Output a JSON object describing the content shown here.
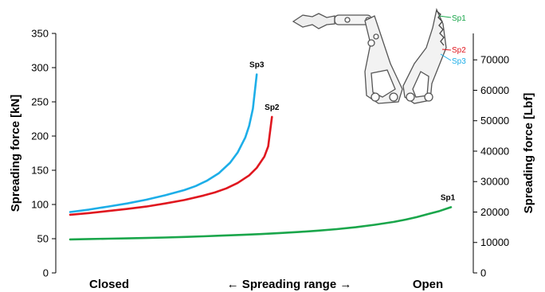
{
  "chart_data": {
    "type": "line",
    "xlabel": "← Spreading range →",
    "x_labels": [
      "Closed",
      "Open"
    ],
    "ylabel": "Spreading force [kN]",
    "ylim": [
      0,
      350
    ],
    "yticks": [
      0,
      50,
      100,
      150,
      200,
      250,
      300,
      350
    ],
    "y2label": "Spreading force [Lbf]",
    "y2lim": [
      0,
      78683
    ],
    "y2ticks": [
      0,
      10000,
      20000,
      30000,
      40000,
      50000,
      60000,
      70000
    ],
    "grid": false,
    "series": [
      {
        "name": "Sp1",
        "color": "#1aa64b",
        "x": [
          0,
          0.05,
          0.1,
          0.15,
          0.2,
          0.25,
          0.3,
          0.35,
          0.4,
          0.45,
          0.5,
          0.55,
          0.6,
          0.65,
          0.7,
          0.75,
          0.8,
          0.85,
          0.88,
          0.91,
          0.94,
          0.97,
          1.0
        ],
        "values": [
          49,
          49.5,
          50,
          50.5,
          51,
          51.8,
          52.6,
          53.5,
          54.5,
          55.6,
          56.8,
          58.2,
          59.8,
          61.7,
          64.0,
          66.8,
          70.3,
          74.5,
          77.8,
          81.5,
          86,
          90.5,
          96
        ]
      },
      {
        "name": "Sp2",
        "color": "#e0171f",
        "x": [
          0,
          0.05,
          0.1,
          0.15,
          0.2,
          0.25,
          0.3,
          0.35,
          0.38,
          0.41,
          0.44,
          0.47,
          0.49,
          0.51,
          0.52,
          0.53
        ],
        "values": [
          85,
          87.5,
          90.5,
          93.5,
          97,
          101.5,
          106.5,
          113,
          117.5,
          123.5,
          131.5,
          142.5,
          153.5,
          170,
          185,
          228
        ]
      },
      {
        "name": "Sp3",
        "color": "#1daee8",
        "x": [
          0,
          0.05,
          0.1,
          0.15,
          0.2,
          0.25,
          0.3,
          0.33,
          0.36,
          0.39,
          0.42,
          0.44,
          0.46,
          0.47,
          0.48,
          0.49
        ],
        "values": [
          89,
          92.5,
          97,
          101.5,
          107,
          113.5,
          121,
          127,
          135,
          145.5,
          161,
          176,
          198,
          215,
          240,
          290
        ]
      }
    ]
  }
}
